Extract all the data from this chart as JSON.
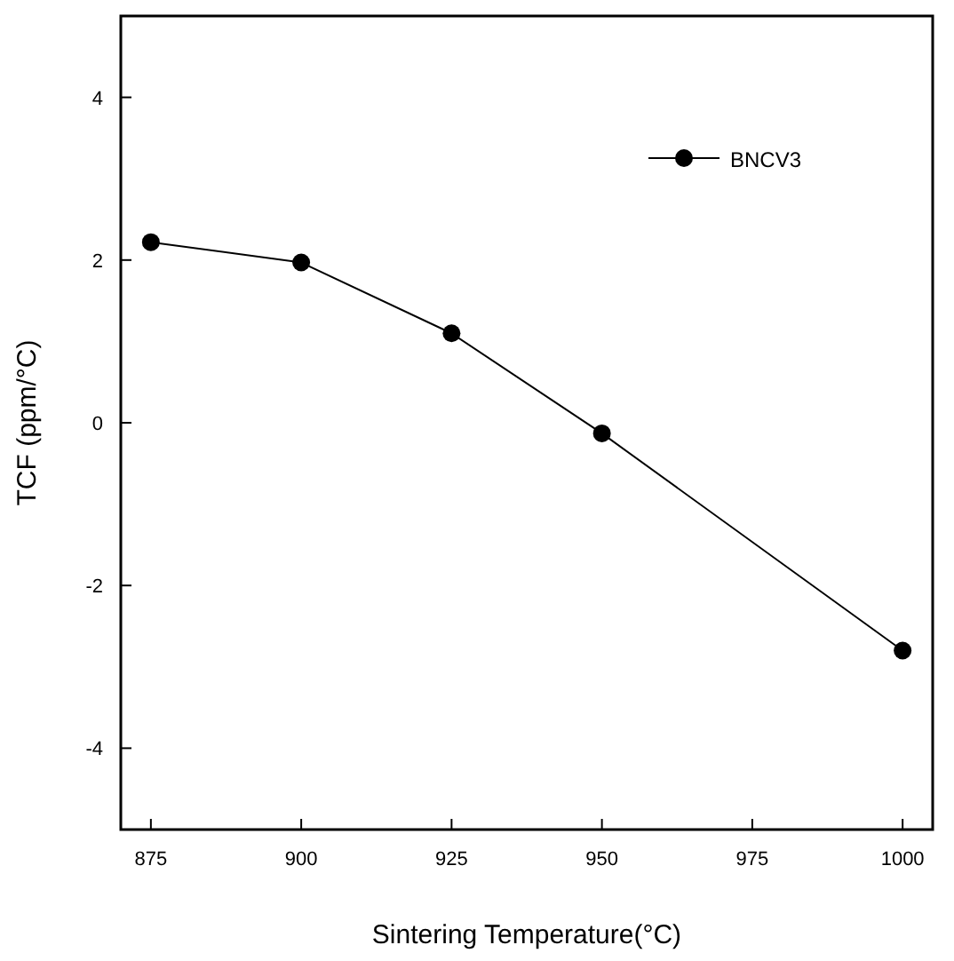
{
  "chart_data": {
    "type": "line",
    "xlabel": "Sintering Temperature(°C)",
    "ylabel": "TCF (ppm/°C)",
    "x": [
      875,
      900,
      925,
      950,
      1000
    ],
    "series": [
      {
        "name": "BNCV3",
        "color": "#000000",
        "values": [
          2.22,
          1.97,
          1.1,
          -0.13,
          -2.8
        ]
      }
    ],
    "xlim": [
      870,
      1005
    ],
    "xticks": [
      875,
      900,
      925,
      950,
      975,
      1000
    ],
    "ylim": [
      -5,
      5
    ],
    "yticks": [
      -4,
      -2,
      0,
      2,
      4
    ],
    "legend": "top right",
    "marker": "circle",
    "line_style": "solid"
  }
}
